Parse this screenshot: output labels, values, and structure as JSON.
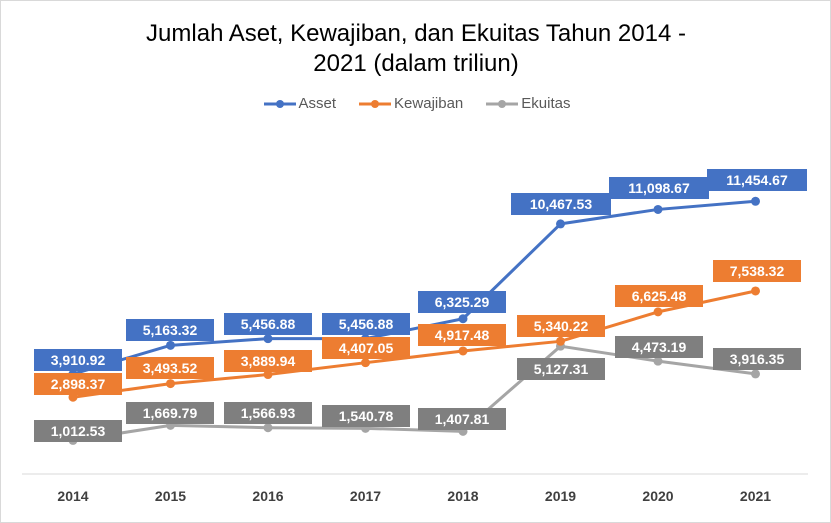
{
  "chart_data": {
    "type": "line",
    "title_lines": [
      "Jumlah Aset, Kewajiban, dan Ekuitas Tahun 2014 -",
      "2021 (dalam triliun)"
    ],
    "categories": [
      "2014",
      "2015",
      "2016",
      "2017",
      "2018",
      "2019",
      "2020",
      "2021"
    ],
    "series": [
      {
        "name": "Asset",
        "color": "#4472c4",
        "values": [
          3910.92,
          5163.32,
          5456.88,
          5456.88,
          6325.29,
          10467.53,
          11098.67,
          11454.67
        ],
        "labels": [
          "3,910.92",
          "5,163.32",
          "5,456.88",
          "5,456.88",
          "6,325.29",
          "10,467.53",
          "11,098.67",
          "11,454.67"
        ]
      },
      {
        "name": "Kewajiban",
        "color": "#ed7d31",
        "values": [
          2898.37,
          3493.52,
          3889.94,
          4407.05,
          4917.48,
          5340.22,
          6625.48,
          7538.32
        ],
        "labels": [
          "2,898.37",
          "3,493.52",
          "3,889.94",
          "4,407.05",
          "4,917.48",
          "5,340.22",
          "6,625.48",
          "7,538.32"
        ]
      },
      {
        "name": "Ekuitas",
        "color": "#a5a5a5",
        "label_color": "#7f7f7f",
        "values": [
          1012.53,
          1669.79,
          1566.93,
          1540.78,
          1407.81,
          5127.31,
          4473.19,
          3916.35
        ],
        "labels": [
          "1,012.53",
          "1,669.79",
          "1,566.93",
          "1,540.78",
          "1,407.81",
          "5,127.31",
          "4,473.19",
          "3,916.35"
        ]
      }
    ],
    "xlabel": "",
    "ylabel": "",
    "grid": false,
    "legend_position": "top"
  }
}
